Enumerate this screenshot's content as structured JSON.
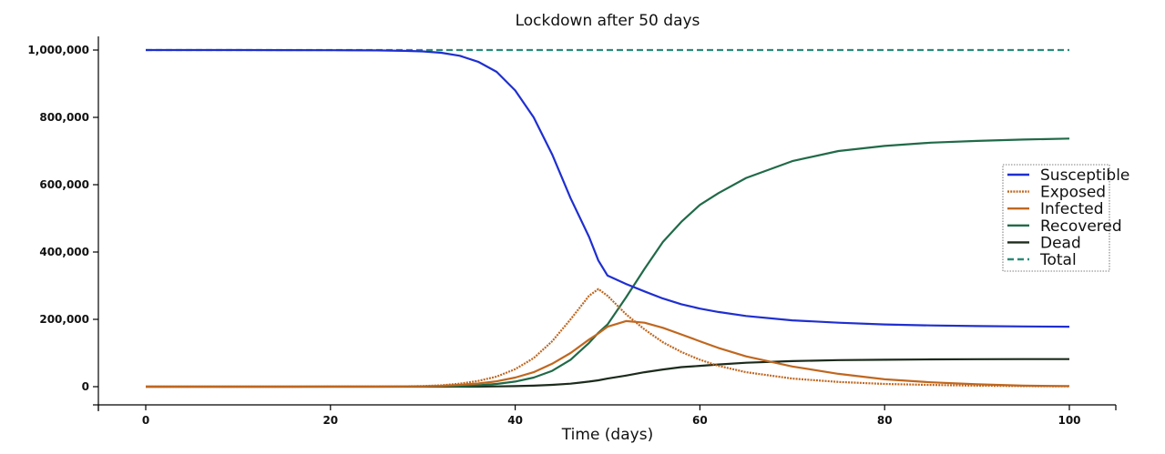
{
  "chart_data": {
    "type": "line",
    "title": "Lockdown after 50 days",
    "xlabel": "Time (days)",
    "ylabel": "",
    "xlim": [
      -5,
      105
    ],
    "ylim": [
      -50000,
      1040000
    ],
    "x_ticks": [
      0,
      20,
      40,
      60,
      80,
      100
    ],
    "y_ticks": [
      0,
      200000,
      400000,
      600000,
      800000,
      1000000
    ],
    "y_tick_labels": [
      "0",
      "200,000",
      "400,000",
      "600,000",
      "800,000",
      "1,000,000"
    ],
    "x": [
      0,
      5,
      10,
      15,
      20,
      25,
      28,
      30,
      32,
      34,
      36,
      38,
      40,
      42,
      44,
      46,
      48,
      49,
      50,
      52,
      54,
      56,
      58,
      60,
      62,
      65,
      70,
      75,
      80,
      85,
      90,
      95,
      100
    ],
    "series": [
      {
        "name": "Susceptible",
        "color": "#1f2fd0",
        "dash": "solid",
        "values": [
          1000000,
          999990,
          999950,
          999800,
          999500,
          998800,
          997500,
          996000,
          992000,
          983000,
          965000,
          935000,
          880000,
          800000,
          690000,
          560000,
          445000,
          375000,
          330000,
          305000,
          283000,
          262000,
          245000,
          232000,
          222000,
          210000,
          197000,
          190000,
          185000,
          182000,
          180000,
          179000,
          178000
        ]
      },
      {
        "name": "Exposed",
        "color": "#c0671f",
        "dash": "dotted",
        "values": [
          0,
          10,
          40,
          100,
          250,
          600,
          1200,
          2000,
          4000,
          9000,
          17000,
          30000,
          52000,
          85000,
          135000,
          200000,
          270000,
          290000,
          270000,
          215000,
          170000,
          132000,
          103000,
          80000,
          62000,
          43000,
          24000,
          14000,
          8000,
          5000,
          3000,
          1500,
          800
        ]
      },
      {
        "name": "Infected",
        "color": "#c0671f",
        "dash": "solid",
        "values": [
          0,
          5,
          20,
          60,
          150,
          350,
          700,
          1200,
          2500,
          5500,
          9500,
          16000,
          27000,
          43000,
          68000,
          100000,
          140000,
          158000,
          178000,
          195000,
          190000,
          175000,
          155000,
          135000,
          115000,
          90000,
          60000,
          38000,
          22000,
          13000,
          7000,
          3000,
          1500
        ]
      },
      {
        "name": "Recovered",
        "color": "#206a48",
        "dash": "solid",
        "values": [
          0,
          0,
          0,
          20,
          50,
          120,
          250,
          500,
          1000,
          2000,
          4000,
          8000,
          15000,
          27000,
          47000,
          80000,
          130000,
          160000,
          185000,
          265000,
          350000,
          430000,
          490000,
          540000,
          575000,
          620000,
          670000,
          700000,
          715000,
          725000,
          730000,
          734000,
          737000
        ]
      },
      {
        "name": "Dead",
        "color": "#1c2b1c",
        "dash": "solid",
        "values": [
          0,
          0,
          0,
          0,
          0,
          10,
          30,
          50,
          100,
          200,
          400,
          800,
          1500,
          3000,
          5500,
          9000,
          15000,
          19000,
          24000,
          33000,
          43000,
          51000,
          58000,
          62000,
          66000,
          71000,
          76000,
          79000,
          80000,
          81000,
          81500,
          82000,
          82000
        ]
      },
      {
        "name": "Total",
        "color": "#2b8a78",
        "dash": "dashed",
        "values": [
          1000000,
          1000000,
          1000000,
          1000000,
          1000000,
          1000000,
          1000000,
          1000000,
          1000000,
          1000000,
          1000000,
          1000000,
          1000000,
          1000000,
          1000000,
          1000000,
          1000000,
          1000000,
          1000000,
          1000000,
          1000000,
          1000000,
          1000000,
          1000000,
          1000000,
          1000000,
          1000000,
          1000000,
          1000000,
          1000000,
          1000000,
          1000000,
          1000000
        ]
      }
    ],
    "legend": "right",
    "grid": false
  }
}
